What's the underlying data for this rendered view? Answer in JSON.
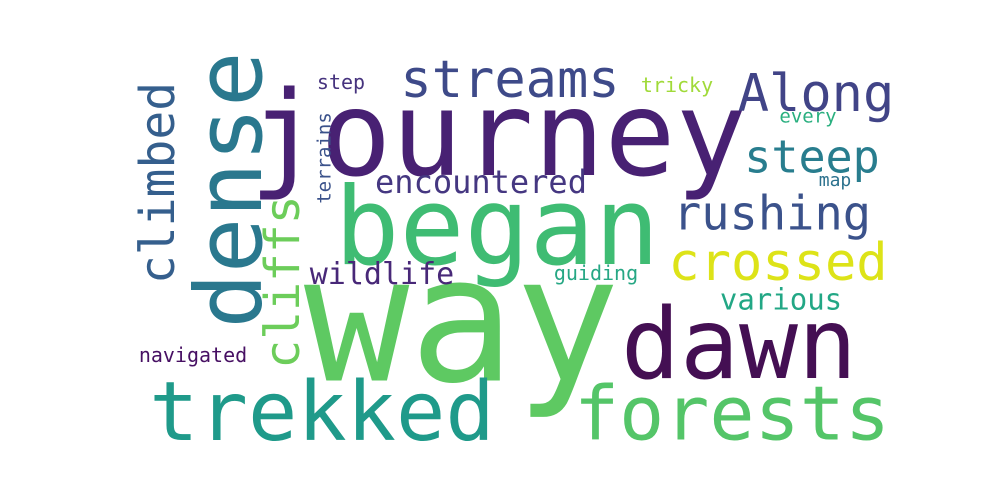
{
  "words": {
    "journey": {
      "text": "journey",
      "color": "#482173"
    },
    "way": {
      "text": "way",
      "color": "#5ec962"
    },
    "began": {
      "text": "began",
      "color": "#3fbc73"
    },
    "dawn": {
      "text": "dawn",
      "color": "#440f53"
    },
    "dense": {
      "text": "dense",
      "color": "#2a788e"
    },
    "trekked": {
      "text": "trekked",
      "color": "#1f9a8a"
    },
    "forests": {
      "text": "forests",
      "color": "#54c568"
    },
    "streams": {
      "text": "streams",
      "color": "#3e4a89"
    },
    "along": {
      "text": "Along",
      "color": "#414487"
    },
    "crossed": {
      "text": "crossed",
      "color": "#dde318"
    },
    "rushing": {
      "text": "rushing",
      "color": "#3b528b"
    },
    "steep": {
      "text": "steep",
      "color": "#287d8e"
    },
    "climbed": {
      "text": "climbed",
      "color": "#355f8d"
    },
    "cliffs": {
      "text": "cliffs",
      "color": "#6ccd5a"
    },
    "encountered": {
      "text": "encountered",
      "color": "#453781"
    },
    "wildlife": {
      "text": "wildlife",
      "color": "#482878"
    },
    "various": {
      "text": "various",
      "color": "#22a785"
    },
    "navigated": {
      "text": "navigated",
      "color": "#471063"
    },
    "guiding": {
      "text": "guiding",
      "color": "#26a784"
    },
    "tricky": {
      "text": "tricky",
      "color": "#a0da39"
    },
    "step": {
      "text": "step",
      "color": "#46337e"
    },
    "every": {
      "text": "every",
      "color": "#29af7f"
    },
    "map": {
      "text": "map",
      "color": "#2c728e"
    },
    "terrains": {
      "text": "terrains",
      "color": "#3b528b"
    }
  },
  "background": "#ffffff"
}
